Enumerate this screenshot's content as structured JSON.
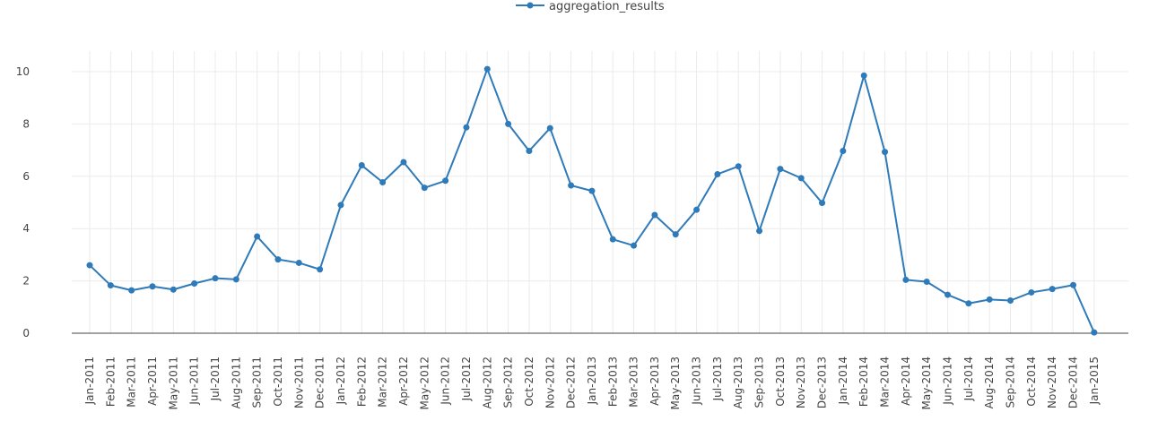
{
  "chart_data": {
    "type": "line",
    "title": "",
    "xlabel": "",
    "ylabel": "",
    "ylim": [
      0,
      10
    ],
    "yticks": [
      "0",
      "2",
      "4",
      "6",
      "8",
      "10"
    ],
    "grid": true,
    "legend_position": "top",
    "line_color": "#2f7ab9",
    "categories": [
      "Jan-2011",
      "Feb-2011",
      "Mar-2011",
      "Apr-2011",
      "May-2011",
      "Jun-2011",
      "Jul-2011",
      "Aug-2011",
      "Sep-2011",
      "Oct-2011",
      "Nov-2011",
      "Dec-2011",
      "Jan-2012",
      "Feb-2012",
      "Mar-2012",
      "Apr-2012",
      "May-2012",
      "Jun-2012",
      "Jul-2012",
      "Aug-2012",
      "Sep-2012",
      "Oct-2012",
      "Nov-2012",
      "Dec-2012",
      "Jan-2013",
      "Feb-2013",
      "Mar-2013",
      "Apr-2013",
      "May-2013",
      "Jun-2013",
      "Jul-2013",
      "Aug-2013",
      "Sep-2013",
      "Oct-2013",
      "Nov-2013",
      "Dec-2013",
      "Jan-2014",
      "Feb-2014",
      "Mar-2014",
      "Apr-2014",
      "May-2014",
      "Jun-2014",
      "Jul-2014",
      "Aug-2014",
      "Sep-2014",
      "Oct-2014",
      "Nov-2014",
      "Dec-2014",
      "Jan-2015"
    ],
    "series": [
      {
        "name": "aggregation_results",
        "values": [
          2.6,
          1.83,
          1.64,
          1.79,
          1.67,
          1.9,
          2.1,
          2.06,
          3.7,
          2.82,
          2.69,
          2.44,
          4.9,
          6.42,
          5.77,
          6.54,
          5.56,
          5.83,
          7.87,
          10.1,
          8.0,
          6.97,
          7.84,
          5.65,
          5.44,
          3.59,
          3.35,
          4.52,
          3.78,
          4.72,
          6.08,
          6.38,
          3.91,
          6.28,
          5.93,
          4.98,
          6.97,
          9.85,
          6.93,
          2.04,
          1.97,
          1.47,
          1.14,
          1.29,
          1.25,
          1.56,
          1.69,
          1.84,
          0.03
        ]
      }
    ]
  }
}
